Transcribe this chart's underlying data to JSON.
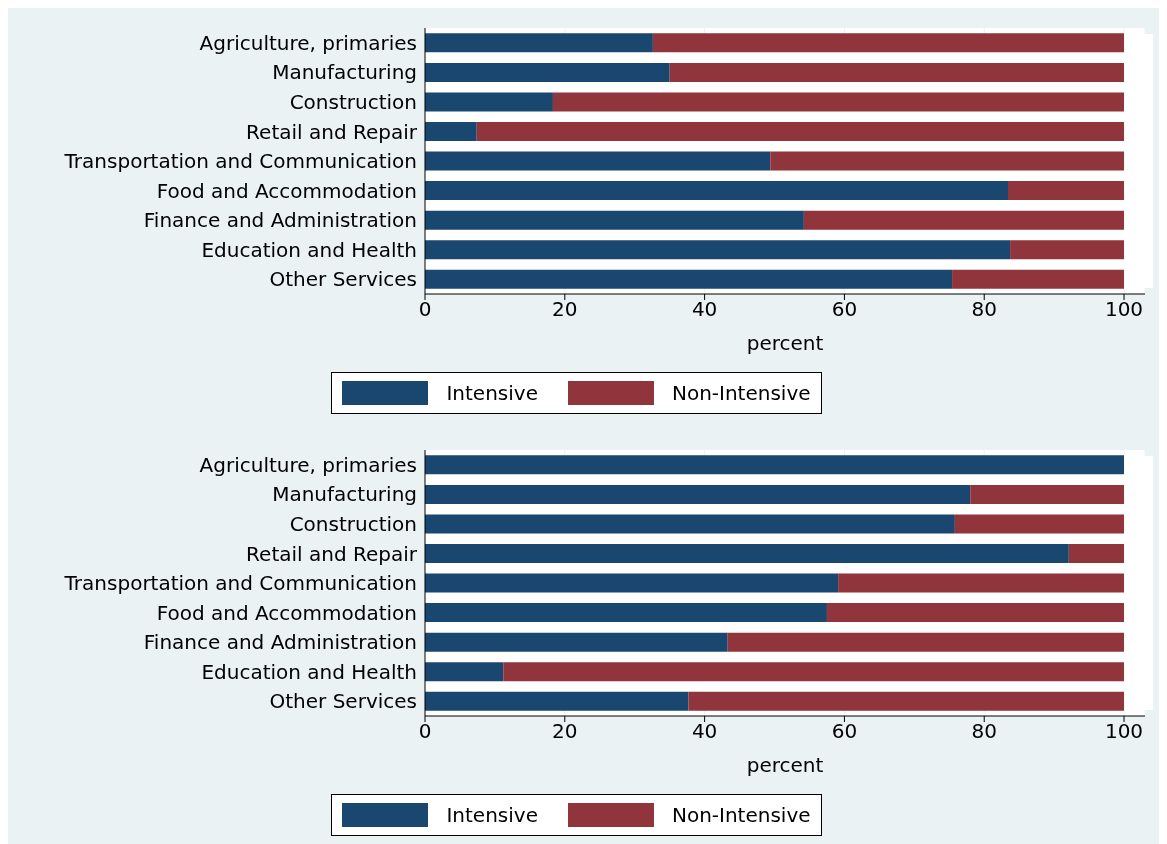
{
  "chart_data": [
    {
      "type": "bar",
      "orientation": "horizontal",
      "stacked": true,
      "categories": [
        "Agriculture, primaries",
        "Manufacturing",
        "Construction",
        "Retail and Repair",
        "Transportation and Communication",
        "Food and Accommodation",
        "Finance and Administration",
        "Education and Health",
        "Other Services"
      ],
      "series": [
        {
          "name": "Intensive",
          "color": "#1a476f",
          "values": [
            32.6,
            35.0,
            18.3,
            7.4,
            49.4,
            83.4,
            54.2,
            83.7,
            75.4
          ]
        },
        {
          "name": "Non-Intensive",
          "color": "#90353b",
          "values": [
            67.4,
            65.0,
            81.7,
            92.6,
            50.6,
            16.6,
            45.8,
            16.3,
            24.6
          ]
        }
      ],
      "xlim": [
        0,
        103
      ],
      "xticks": [
        0,
        20,
        40,
        60,
        80,
        100
      ],
      "xlabel": "percent",
      "grid": "x",
      "legend": "bottom"
    },
    {
      "type": "bar",
      "orientation": "horizontal",
      "stacked": true,
      "categories": [
        "Agriculture, primaries",
        "Manufacturing",
        "Construction",
        "Retail and Repair",
        "Transportation and Communication",
        "Food and Accommodation",
        "Finance and Administration",
        "Education and Health",
        "Other Services"
      ],
      "series": [
        {
          "name": "Intensive",
          "color": "#1a476f",
          "values": [
            100,
            78.0,
            75.8,
            92.1,
            59.1,
            57.5,
            43.3,
            11.2,
            37.7
          ]
        },
        {
          "name": "Non-Intensive",
          "color": "#90353b",
          "values": [
            0,
            22.0,
            24.2,
            7.9,
            40.9,
            42.5,
            56.7,
            88.8,
            62.3
          ]
        }
      ],
      "xlim": [
        0,
        103
      ],
      "xticks": [
        0,
        20,
        40,
        60,
        80,
        100
      ],
      "xlabel": "percent",
      "grid": "x",
      "legend": "bottom"
    }
  ]
}
